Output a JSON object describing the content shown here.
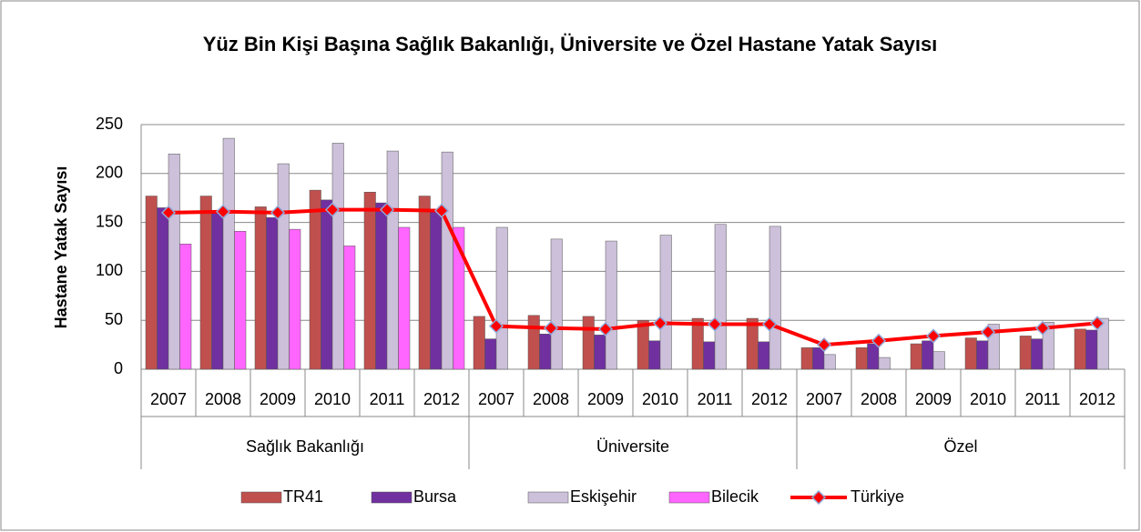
{
  "chart_data": {
    "type": "bar_line",
    "title": "Yüz Bin Kişi Başına Sağlık Bakanlığı, Üniversite ve Özel Hastane Yatak Sayısı",
    "y_label": "Hastane Yatak Sayısı",
    "categories": [
      "2007",
      "2008",
      "2009",
      "2010",
      "2011",
      "2012",
      "2007",
      "2008",
      "2009",
      "2010",
      "2011",
      "2012",
      "2007",
      "2008",
      "2009",
      "2010",
      "2011",
      "2012"
    ],
    "category_groups": [
      "Sağlık Bakanlığı",
      "Üniversite",
      "Özel"
    ],
    "ylim": [
      0,
      250
    ],
    "yticks": [
      0,
      50,
      100,
      150,
      200,
      250
    ],
    "grid": true,
    "series": [
      {
        "name": "TR41",
        "color": "#c0504d",
        "values": [
          177,
          177,
          166,
          183,
          181,
          177,
          54,
          55,
          54,
          50,
          52,
          52,
          22,
          22,
          26,
          32,
          34,
          41
        ]
      },
      {
        "name": "Bursa",
        "color": "#7030a0",
        "values": [
          165,
          160,
          155,
          173,
          170,
          163,
          31,
          36,
          35,
          29,
          28,
          28,
          22,
          26,
          29,
          29,
          31,
          40
        ]
      },
      {
        "name": "Eskişehir",
        "color": "#ccc0da",
        "values": [
          220,
          236,
          210,
          231,
          223,
          222,
          145,
          133,
          131,
          137,
          148,
          146,
          15,
          12,
          18,
          46,
          48,
          52
        ]
      },
      {
        "name": "Bilecik",
        "color": "#ff66ff",
        "values": [
          128,
          141,
          143,
          126,
          145,
          145,
          null,
          null,
          null,
          null,
          null,
          null,
          null,
          null,
          null,
          null,
          null,
          null
        ]
      },
      {
        "name": "Türkiye",
        "color": "#ff0000",
        "type": "line",
        "values": [
          160,
          161,
          160,
          163,
          163,
          162,
          44,
          42,
          41,
          47,
          46,
          46,
          25,
          29,
          34,
          38,
          42,
          47
        ]
      }
    ]
  }
}
